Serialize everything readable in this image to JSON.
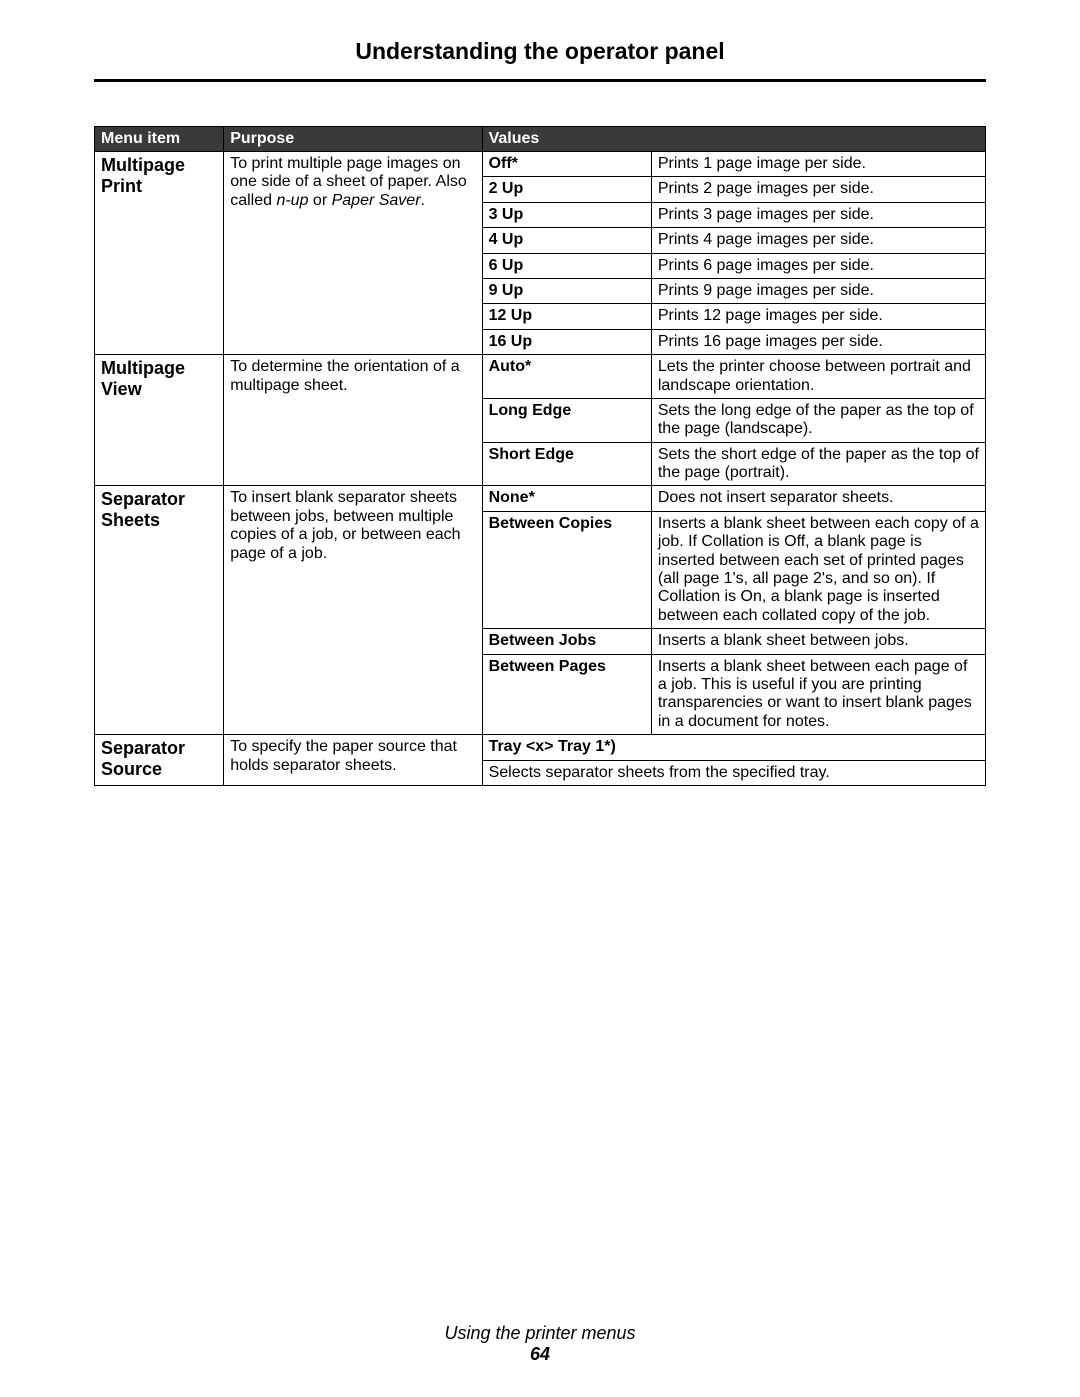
{
  "title": "Understanding the operator panel",
  "footer_line": "Using the printer menus",
  "page_number": "64",
  "colors": {
    "header_bg": "#3a3a3a",
    "header_fg": "#ffffff",
    "border": "#000000",
    "background": "#ffffff"
  },
  "headers": {
    "menu": "Menu item",
    "purpose": "Purpose",
    "values": "Values"
  },
  "rows": {
    "r1": {
      "menu": "Multipage Print",
      "purpose_line1": "To print multiple page images on one side of a sheet of paper. Also called ",
      "purpose_it1": "n-up",
      "purpose_mid": " or ",
      "purpose_it2": "Paper Saver",
      "purpose_end": ".",
      "vals": [
        {
          "name": "Off*",
          "desc": "Prints 1 page image per side."
        },
        {
          "name": "2 Up",
          "desc": "Prints 2 page images per side."
        },
        {
          "name": "3 Up",
          "desc": "Prints 3 page images per side."
        },
        {
          "name": "4 Up",
          "desc": "Prints 4 page images per side."
        },
        {
          "name": "6 Up",
          "desc": "Prints 6 page images per side."
        },
        {
          "name": "9 Up",
          "desc": "Prints 9 page images per side."
        },
        {
          "name": "12 Up",
          "desc": "Prints 12 page images per side."
        },
        {
          "name": "16 Up",
          "desc": "Prints 16 page images per side."
        }
      ]
    },
    "r2": {
      "menu": "Multipage View",
      "purpose": "To determine the orientation of a multipage sheet.",
      "vals": [
        {
          "name": "Auto*",
          "desc": "Lets the printer choose between portrait and landscape orientation."
        },
        {
          "name": "Long Edge",
          "desc": "Sets the long edge of the paper as the top of the page (landscape)."
        },
        {
          "name": "Short Edge",
          "desc": "Sets the short edge of the paper as the top of the page (portrait)."
        }
      ]
    },
    "r3": {
      "menu": "Separator Sheets",
      "purpose": "To insert blank separator sheets between jobs, between multiple copies of a job, or between each page of a job.",
      "vals": [
        {
          "name": "None*",
          "desc": "Does not insert separator sheets."
        },
        {
          "name": "Between Copies",
          "desc": "Inserts a blank sheet between each copy of a job. If Collation is Off, a blank page is inserted between each set of printed pages (all page 1's, all page 2's, and so on). If Collation is On, a blank page is inserted between each collated copy of the job."
        },
        {
          "name": "Between Jobs",
          "desc": "Inserts a blank sheet between jobs."
        },
        {
          "name": "Between Pages",
          "desc": "Inserts a blank sheet between each page of a job. This is useful if you are printing transparencies or want to insert blank pages in a document for notes."
        }
      ]
    },
    "r4": {
      "menu": "Separator Source",
      "purpose": "To specify the paper source that holds separator sheets.",
      "valname": "Tray <x> Tray 1*)",
      "valdesc": "Selects separator sheets from the specified tray."
    }
  }
}
